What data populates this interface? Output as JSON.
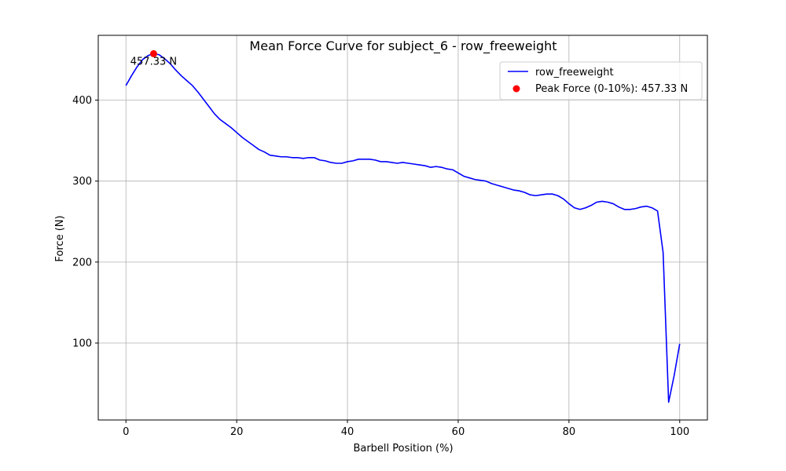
{
  "chart_data": {
    "type": "line",
    "title": "Mean Force Curve for subject_6 - row_freeweight",
    "xlabel": "Barbell Position (%)",
    "ylabel": "Force (N)",
    "xlim": [
      -5,
      105
    ],
    "ylim": [
      5,
      480
    ],
    "xticks": [
      0,
      20,
      40,
      60,
      80,
      100
    ],
    "yticks": [
      100,
      200,
      300,
      400
    ],
    "grid": true,
    "legend_position": "top-right",
    "series": [
      {
        "name": "row_freeweight",
        "color": "#0000ff",
        "x": [
          0,
          1,
          2,
          3,
          4,
          5,
          6,
          7,
          8,
          9,
          10,
          11,
          12,
          13,
          14,
          15,
          16,
          17,
          18,
          19,
          20,
          21,
          22,
          23,
          24,
          25,
          26,
          27,
          28,
          29,
          30,
          31,
          32,
          33,
          34,
          35,
          36,
          37,
          38,
          39,
          40,
          41,
          42,
          43,
          44,
          45,
          46,
          47,
          48,
          49,
          50,
          51,
          52,
          53,
          54,
          55,
          56,
          57,
          58,
          59,
          60,
          61,
          62,
          63,
          64,
          65,
          66,
          67,
          68,
          69,
          70,
          71,
          72,
          73,
          74,
          75,
          76,
          77,
          78,
          79,
          80,
          81,
          82,
          83,
          84,
          85,
          86,
          87,
          88,
          89,
          90,
          91,
          92,
          93,
          94,
          95,
          96,
          97,
          98,
          99,
          100
        ],
        "y": [
          418,
          430,
          441,
          450,
          455,
          457.33,
          456,
          451,
          445,
          437,
          430,
          424,
          418,
          410,
          401,
          392,
          383,
          376,
          371,
          366,
          360,
          354,
          349,
          344,
          339,
          336,
          332,
          331,
          330,
          330,
          329,
          329,
          328,
          329,
          329,
          326,
          325,
          323,
          322,
          322,
          324,
          325,
          327,
          327,
          327,
          326,
          324,
          324,
          323,
          322,
          323,
          322,
          321,
          320,
          319,
          317,
          318,
          317,
          315,
          314,
          310,
          306,
          304,
          302,
          301,
          300,
          297,
          295,
          293,
          291,
          289,
          288,
          286,
          283,
          282,
          283,
          284,
          284,
          282,
          278,
          272,
          267,
          265,
          267,
          270,
          274,
          275,
          274,
          272,
          268,
          265,
          265,
          266,
          268,
          269,
          267,
          263,
          212,
          27,
          60,
          99
        ]
      }
    ],
    "peak": {
      "label": "Peak Force (0-10%): 457.33 N",
      "annotation": "457.33 N",
      "x": 5,
      "y": 457.33,
      "color": "#ff0000"
    }
  }
}
